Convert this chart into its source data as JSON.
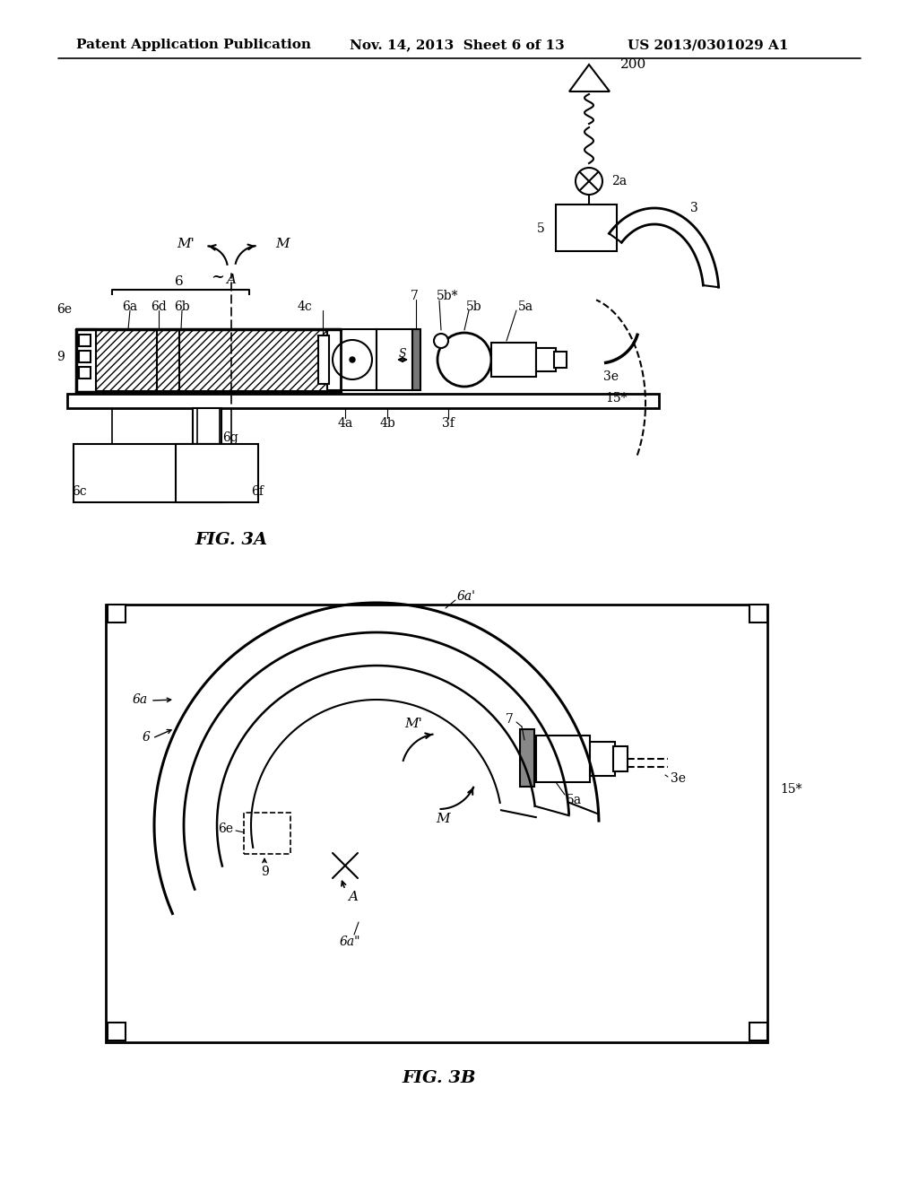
{
  "bg_color": "#ffffff",
  "header_left": "Patent Application Publication",
  "header_mid": "Nov. 14, 2013  Sheet 6 of 13",
  "header_right": "US 2013/0301029 A1",
  "fig3a_label": "FIG. 3A",
  "fig3b_label": "FIG. 3B"
}
